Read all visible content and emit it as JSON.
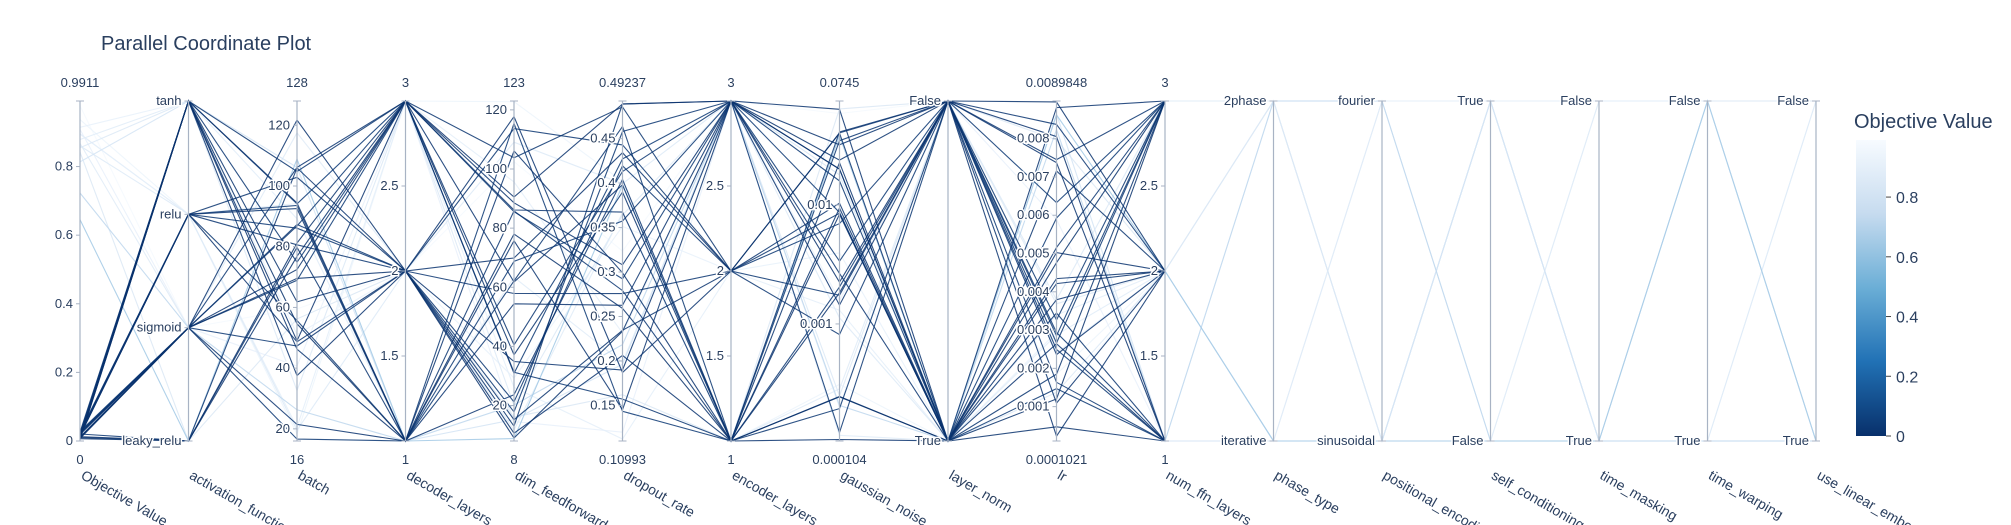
{
  "chart_data": {
    "type": "parallel_coordinates",
    "title": "Parallel Coordinate Plot",
    "colorbar": {
      "title": "Objective Value",
      "ticks": [
        "0",
        "0.2",
        "0.4",
        "0.6",
        "0.8"
      ],
      "tick_values": [
        0,
        0.2,
        0.4,
        0.6,
        0.8
      ],
      "range": [
        0,
        0.9911
      ],
      "colorscale": [
        "#08306b",
        "#2171b5",
        "#6baed6",
        "#c6dbef",
        "#f7fbff"
      ]
    },
    "dimensions": [
      {
        "label": "Objective Value",
        "kind": "numeric",
        "range": [
          0,
          0.9911
        ],
        "range_labels": [
          "0",
          "0.9911"
        ],
        "ticks": [
          "0",
          "0.2",
          "0.4",
          "0.6",
          "0.8"
        ],
        "tick_values": [
          0,
          0.2,
          0.4,
          0.6,
          0.8
        ]
      },
      {
        "label": "activation_functio",
        "kind": "categorical",
        "ticks": [
          "leaky_relu",
          "sigmoid",
          "relu",
          "tanh"
        ]
      },
      {
        "label": "batch",
        "kind": "numeric",
        "range": [
          16,
          128
        ],
        "range_labels": [
          "16",
          "128"
        ],
        "ticks": [
          "20",
          "40",
          "60",
          "80",
          "100",
          "120"
        ],
        "tick_values": [
          20,
          40,
          60,
          80,
          100,
          120
        ]
      },
      {
        "label": "decoder_layers",
        "kind": "numeric",
        "range": [
          1,
          3
        ],
        "range_labels": [
          "1",
          "3"
        ],
        "ticks": [
          "1.5",
          "2",
          "2.5"
        ],
        "tick_values": [
          1.5,
          2,
          2.5
        ]
      },
      {
        "label": "dim_feedforward",
        "kind": "numeric",
        "range": [
          8,
          123
        ],
        "range_labels": [
          "8",
          "123"
        ],
        "ticks": [
          "20",
          "40",
          "60",
          "80",
          "100",
          "120"
        ],
        "tick_values": [
          20,
          40,
          60,
          80,
          100,
          120
        ]
      },
      {
        "label": "dropout_rate",
        "kind": "numeric",
        "range": [
          0.10993,
          0.49237
        ],
        "range_labels": [
          "0.10993",
          "0.49237"
        ],
        "ticks": [
          "0.15",
          "0.2",
          "0.25",
          "0.3",
          "0.35",
          "0.4",
          "0.45"
        ],
        "tick_values": [
          0.15,
          0.2,
          0.25,
          0.3,
          0.35,
          0.4,
          0.45
        ]
      },
      {
        "label": "encoder_layers",
        "kind": "numeric",
        "range": [
          1,
          3
        ],
        "range_labels": [
          "1",
          "3"
        ],
        "ticks": [
          "1.5",
          "2",
          "2.5"
        ],
        "tick_values": [
          1.5,
          2,
          2.5
        ]
      },
      {
        "label": "gaussian_noise",
        "kind": "numeric",
        "range": [
          0.000104,
          0.0745
        ],
        "range_labels": [
          "0.000104",
          "0.0745"
        ],
        "ticks": [
          "0.001",
          "0.01"
        ],
        "tick_values": [
          0.001,
          0.01
        ],
        "scale": "log"
      },
      {
        "label": "layer_norm",
        "kind": "categorical",
        "ticks": [
          "True",
          "False"
        ]
      },
      {
        "label": "lr",
        "kind": "numeric",
        "range": [
          0.0001021,
          0.0089848
        ],
        "range_labels": [
          "0.0001021",
          "0.0089848"
        ],
        "ticks": [
          "0.001",
          "0.002",
          "0.003",
          "0.004",
          "0.005",
          "0.006",
          "0.007",
          "0.008"
        ],
        "tick_values": [
          0.001,
          0.002,
          0.003,
          0.004,
          0.005,
          0.006,
          0.007,
          0.008
        ]
      },
      {
        "label": "num_ffn_layers",
        "kind": "numeric",
        "range": [
          1,
          3
        ],
        "range_labels": [
          "1",
          "3"
        ],
        "ticks": [
          "1.5",
          "2",
          "2.5"
        ],
        "tick_values": [
          1.5,
          2,
          2.5
        ]
      },
      {
        "label": "phase_type",
        "kind": "categorical",
        "ticks": [
          "iterative",
          "2phase"
        ]
      },
      {
        "label": "positional_encodi",
        "kind": "categorical",
        "ticks": [
          "sinusoidal",
          "fourier"
        ]
      },
      {
        "label": "self_conditioning",
        "kind": "categorical",
        "ticks": [
          "False",
          "True"
        ]
      },
      {
        "label": "time_masking",
        "kind": "categorical",
        "ticks": [
          "True",
          "False"
        ]
      },
      {
        "label": "time_warping",
        "kind": "categorical",
        "ticks": [
          "True",
          "False"
        ]
      },
      {
        "label": "use_linear_embe",
        "kind": "categorical",
        "ticks": [
          "True",
          "False"
        ]
      }
    ]
  }
}
